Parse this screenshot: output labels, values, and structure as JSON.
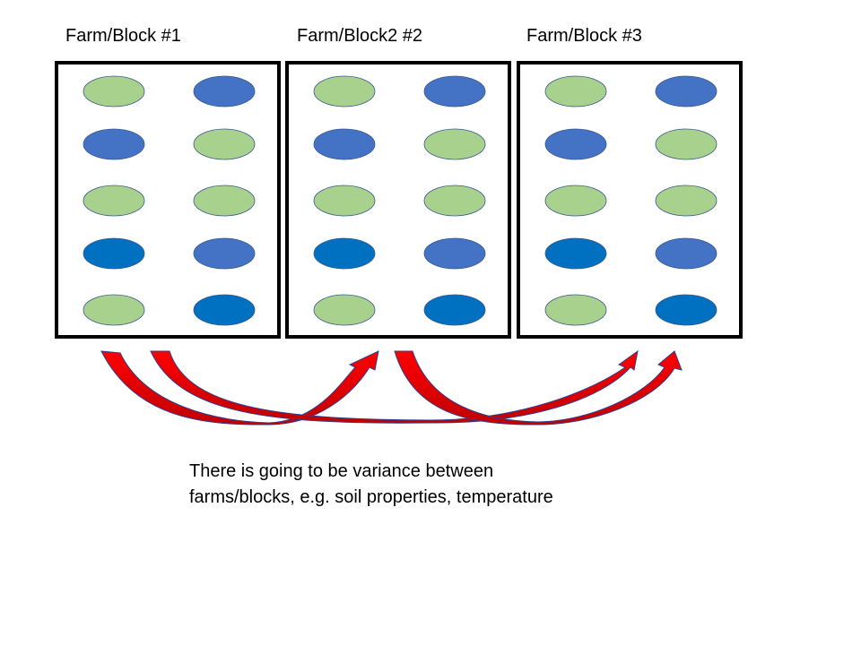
{
  "blocks": [
    {
      "label": "Farm/Block #1",
      "plots": [
        [
          "light-green",
          "mid-blue"
        ],
        [
          "mid-blue",
          "light-green"
        ],
        [
          "light-green",
          "light-green"
        ],
        [
          "dark-blue",
          "mid-blue"
        ],
        [
          "light-green",
          "dark-blue"
        ]
      ]
    },
    {
      "label": "Farm/Block2 #2",
      "plots": [
        [
          "light-green",
          "mid-blue"
        ],
        [
          "mid-blue",
          "light-green"
        ],
        [
          "light-green",
          "light-green"
        ],
        [
          "dark-blue",
          "mid-blue"
        ],
        [
          "light-green",
          "dark-blue"
        ]
      ]
    },
    {
      "label": "Farm/Block #3",
      "plots": [
        [
          "light-green",
          "mid-blue"
        ],
        [
          "mid-blue",
          "light-green"
        ],
        [
          "light-green",
          "light-green"
        ],
        [
          "dark-blue",
          "mid-blue"
        ],
        [
          "light-green",
          "dark-blue"
        ]
      ]
    }
  ],
  "colors": {
    "light-green": "#a9d18e",
    "mid-blue": "#4472c4",
    "dark-blue": "#0070c0",
    "arrow-red": "#ff0000",
    "arrow-dark-red": "#c00000",
    "arrow-outline": "#2f3f8f",
    "block-border": "#000000"
  },
  "arrows": [
    {
      "from": "Farm/Block #1",
      "to": "Farm/Block2 #2"
    },
    {
      "from": "Farm/Block #1",
      "to": "Farm/Block #3"
    },
    {
      "from": "Farm/Block2 #2",
      "to": "Farm/Block #3"
    }
  ],
  "caption": {
    "line1": "There is going to be variance between",
    "line2": "farms/blocks, e.g. soil properties, temperature"
  }
}
